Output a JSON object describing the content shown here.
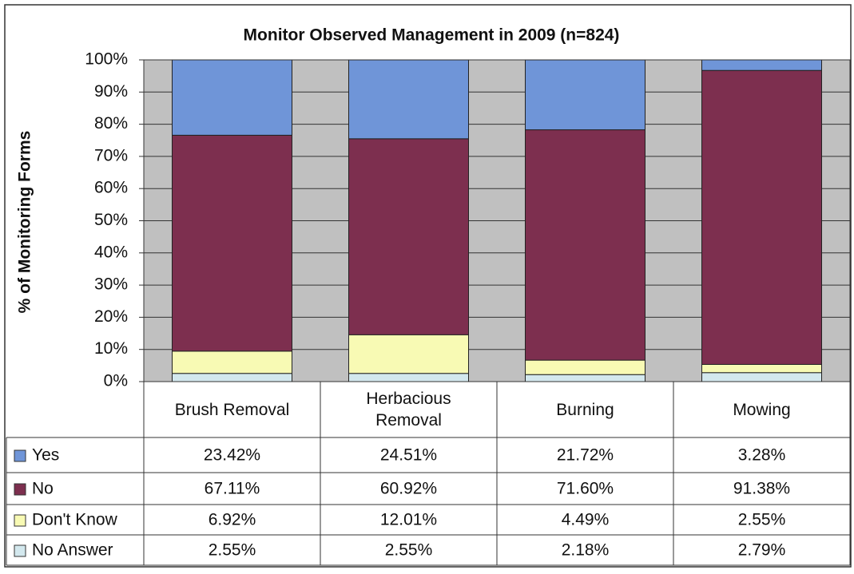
{
  "chart_data": {
    "type": "stacked-bar",
    "title": "Monitor Observed Management in 2009 (n=824)",
    "y_label": "% of Monitoring Forms",
    "categories": [
      "Brush Removal",
      "Herbacious Removal",
      "Burning",
      "Mowing"
    ],
    "series": [
      {
        "name": "Yes",
        "color": "#6f95d8",
        "values": [
          23.42,
          24.51,
          21.72,
          3.28
        ],
        "value_labels": [
          "23.42%",
          "24.51%",
          "21.72%",
          "3.28%"
        ]
      },
      {
        "name": "No",
        "color": "#7d2f4f",
        "values": [
          67.11,
          60.92,
          71.6,
          91.38
        ],
        "value_labels": [
          "67.11%",
          "60.92%",
          "71.60%",
          "91.38%"
        ]
      },
      {
        "name": "Don't Know",
        "color": "#f8fab4",
        "values": [
          6.92,
          12.01,
          4.49,
          2.55
        ],
        "value_labels": [
          "6.92%",
          "12.01%",
          "4.49%",
          "2.55%"
        ]
      },
      {
        "name": "No Answer",
        "color": "#d3e8ee",
        "values": [
          2.55,
          2.55,
          2.18,
          2.79
        ],
        "value_labels": [
          "2.55%",
          "2.55%",
          "2.18%",
          "2.79%"
        ]
      }
    ],
    "ylim": [
      0,
      100
    ],
    "yticks": [
      {
        "value": 0,
        "label": "0%"
      },
      {
        "value": 10,
        "label": "10%"
      },
      {
        "value": 20,
        "label": "20%"
      },
      {
        "value": 30,
        "label": "30%"
      },
      {
        "value": 40,
        "label": "40%"
      },
      {
        "value": 50,
        "label": "50%"
      },
      {
        "value": 60,
        "label": "60%"
      },
      {
        "value": 70,
        "label": "70%"
      },
      {
        "value": 80,
        "label": "80%"
      },
      {
        "value": 90,
        "label": "90%"
      },
      {
        "value": 100,
        "label": "100%"
      }
    ],
    "grid": true
  }
}
